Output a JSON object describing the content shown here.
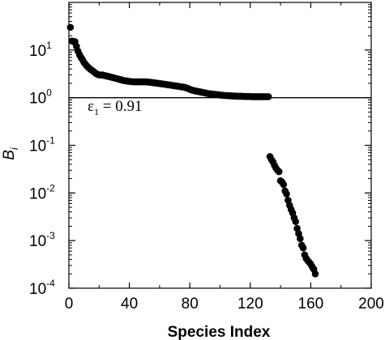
{
  "chart_data": {
    "type": "scatter",
    "xlabel": "Species Index",
    "ylabel": "B",
    "ylabel_sub": "i",
    "xlim": [
      0,
      200
    ],
    "ylim": [
      0.0001,
      100
    ],
    "yscale": "log",
    "grid": false,
    "x_ticks": [
      0,
      40,
      80,
      120,
      160,
      200
    ],
    "y_ticks": [
      {
        "base": "10",
        "exp": "-4",
        "value": 0.0001
      },
      {
        "base": "10",
        "exp": "-3",
        "value": 0.001
      },
      {
        "base": "10",
        "exp": "-2",
        "value": 0.01
      },
      {
        "base": "10",
        "exp": "-1",
        "value": 0.1
      },
      {
        "base": "10",
        "exp": "0",
        "value": 1
      },
      {
        "base": "10",
        "exp": "1",
        "value": 10
      }
    ],
    "reference_line": {
      "y": 1
    },
    "annotation": {
      "symbol": "ε",
      "sub": "1",
      "text": " = 0.91"
    },
    "marker_color": "#000000",
    "series": [
      {
        "points": [
          [
            1,
            30.0
          ],
          [
            2,
            15.5
          ],
          [
            3,
            15.0
          ],
          [
            4,
            15.0
          ],
          [
            5,
            12.0
          ],
          [
            6,
            9.5
          ],
          [
            7,
            8.0
          ],
          [
            8,
            7.0
          ],
          [
            9,
            6.3
          ],
          [
            10,
            5.5
          ],
          [
            11,
            5.0
          ],
          [
            12,
            4.6
          ],
          [
            13,
            4.3
          ],
          [
            14,
            4.0
          ],
          [
            15,
            3.8
          ],
          [
            16,
            3.6
          ],
          [
            17,
            3.4
          ],
          [
            18,
            3.2
          ],
          [
            19,
            3.1
          ],
          [
            20,
            3.0
          ],
          [
            21,
            3.0
          ],
          [
            22,
            3.0
          ],
          [
            23,
            2.95
          ],
          [
            24,
            2.9
          ],
          [
            25,
            2.85
          ],
          [
            26,
            2.8
          ],
          [
            27,
            2.75
          ],
          [
            28,
            2.7
          ],
          [
            29,
            2.65
          ],
          [
            30,
            2.6
          ],
          [
            31,
            2.55
          ],
          [
            32,
            2.5
          ],
          [
            33,
            2.45
          ],
          [
            34,
            2.4
          ],
          [
            35,
            2.35
          ],
          [
            36,
            2.3
          ],
          [
            37,
            2.27
          ],
          [
            38,
            2.25
          ],
          [
            39,
            2.22
          ],
          [
            40,
            2.2
          ],
          [
            41,
            2.18
          ],
          [
            42,
            2.16
          ],
          [
            43,
            2.15
          ],
          [
            44,
            2.15
          ],
          [
            45,
            2.15
          ],
          [
            46,
            2.15
          ],
          [
            47,
            2.15
          ],
          [
            48,
            2.15
          ],
          [
            49,
            2.15
          ],
          [
            50,
            2.15
          ],
          [
            51,
            2.14
          ],
          [
            52,
            2.13
          ],
          [
            53,
            2.12
          ],
          [
            54,
            2.1
          ],
          [
            55,
            2.08
          ],
          [
            56,
            2.06
          ],
          [
            57,
            2.04
          ],
          [
            58,
            2.02
          ],
          [
            59,
            2.0
          ],
          [
            60,
            1.98
          ],
          [
            61,
            1.96
          ],
          [
            62,
            1.94
          ],
          [
            63,
            1.92
          ],
          [
            64,
            1.9
          ],
          [
            65,
            1.88
          ],
          [
            66,
            1.86
          ],
          [
            67,
            1.84
          ],
          [
            68,
            1.82
          ],
          [
            69,
            1.8
          ],
          [
            70,
            1.78
          ],
          [
            71,
            1.76
          ],
          [
            72,
            1.74
          ],
          [
            73,
            1.72
          ],
          [
            74,
            1.7
          ],
          [
            75,
            1.68
          ],
          [
            76,
            1.66
          ],
          [
            77,
            1.63
          ],
          [
            78,
            1.6
          ],
          [
            79,
            1.55
          ],
          [
            80,
            1.5
          ],
          [
            81,
            1.46
          ],
          [
            82,
            1.43
          ],
          [
            83,
            1.4
          ],
          [
            84,
            1.38
          ],
          [
            85,
            1.36
          ],
          [
            86,
            1.34
          ],
          [
            87,
            1.32
          ],
          [
            88,
            1.3
          ],
          [
            89,
            1.28
          ],
          [
            90,
            1.26
          ],
          [
            91,
            1.24
          ],
          [
            92,
            1.22
          ],
          [
            93,
            1.21
          ],
          [
            94,
            1.2
          ],
          [
            95,
            1.19
          ],
          [
            96,
            1.18
          ],
          [
            97,
            1.17
          ],
          [
            98,
            1.16
          ],
          [
            99,
            1.15
          ],
          [
            100,
            1.14
          ],
          [
            101,
            1.13
          ],
          [
            102,
            1.12
          ],
          [
            103,
            1.11
          ],
          [
            104,
            1.11
          ],
          [
            105,
            1.1
          ],
          [
            106,
            1.1
          ],
          [
            107,
            1.09
          ],
          [
            108,
            1.09
          ],
          [
            109,
            1.08
          ],
          [
            110,
            1.08
          ],
          [
            111,
            1.08
          ],
          [
            112,
            1.07
          ],
          [
            113,
            1.07
          ],
          [
            114,
            1.07
          ],
          [
            115,
            1.07
          ],
          [
            116,
            1.06
          ],
          [
            117,
            1.06
          ],
          [
            118,
            1.06
          ],
          [
            119,
            1.06
          ],
          [
            120,
            1.06
          ],
          [
            121,
            1.05
          ],
          [
            122,
            1.05
          ],
          [
            123,
            1.05
          ],
          [
            124,
            1.05
          ],
          [
            125,
            1.05
          ],
          [
            126,
            1.05
          ],
          [
            127,
            1.05
          ],
          [
            128,
            1.05
          ],
          [
            129,
            1.05
          ],
          [
            130,
            1.05
          ],
          [
            131,
            1.05
          ],
          [
            132,
            1.05
          ],
          [
            133,
            0.058
          ],
          [
            134,
            0.05
          ],
          [
            135,
            0.045
          ],
          [
            136,
            0.038
          ],
          [
            137,
            0.033
          ],
          [
            138,
            0.03
          ],
          [
            139,
            0.028
          ],
          [
            140,
            0.018
          ],
          [
            141,
            0.017
          ],
          [
            142,
            0.015
          ],
          [
            143,
            0.011
          ],
          [
            144,
            0.0095
          ],
          [
            145,
            0.007
          ],
          [
            146,
            0.0055
          ],
          [
            147,
            0.0045
          ],
          [
            148,
            0.0038
          ],
          [
            149,
            0.003
          ],
          [
            150,
            0.0025
          ],
          [
            151,
            0.0018
          ],
          [
            152,
            0.0014
          ],
          [
            153,
            0.0011
          ],
          [
            154,
            0.0008
          ],
          [
            155,
            0.0007
          ],
          [
            156,
            0.0005
          ],
          [
            157,
            0.00042
          ],
          [
            158,
            0.00038
          ],
          [
            159,
            0.00035
          ],
          [
            160,
            0.00032
          ],
          [
            161,
            0.00028
          ],
          [
            162,
            0.00025
          ],
          [
            163,
            0.0002
          ]
        ]
      }
    ]
  }
}
